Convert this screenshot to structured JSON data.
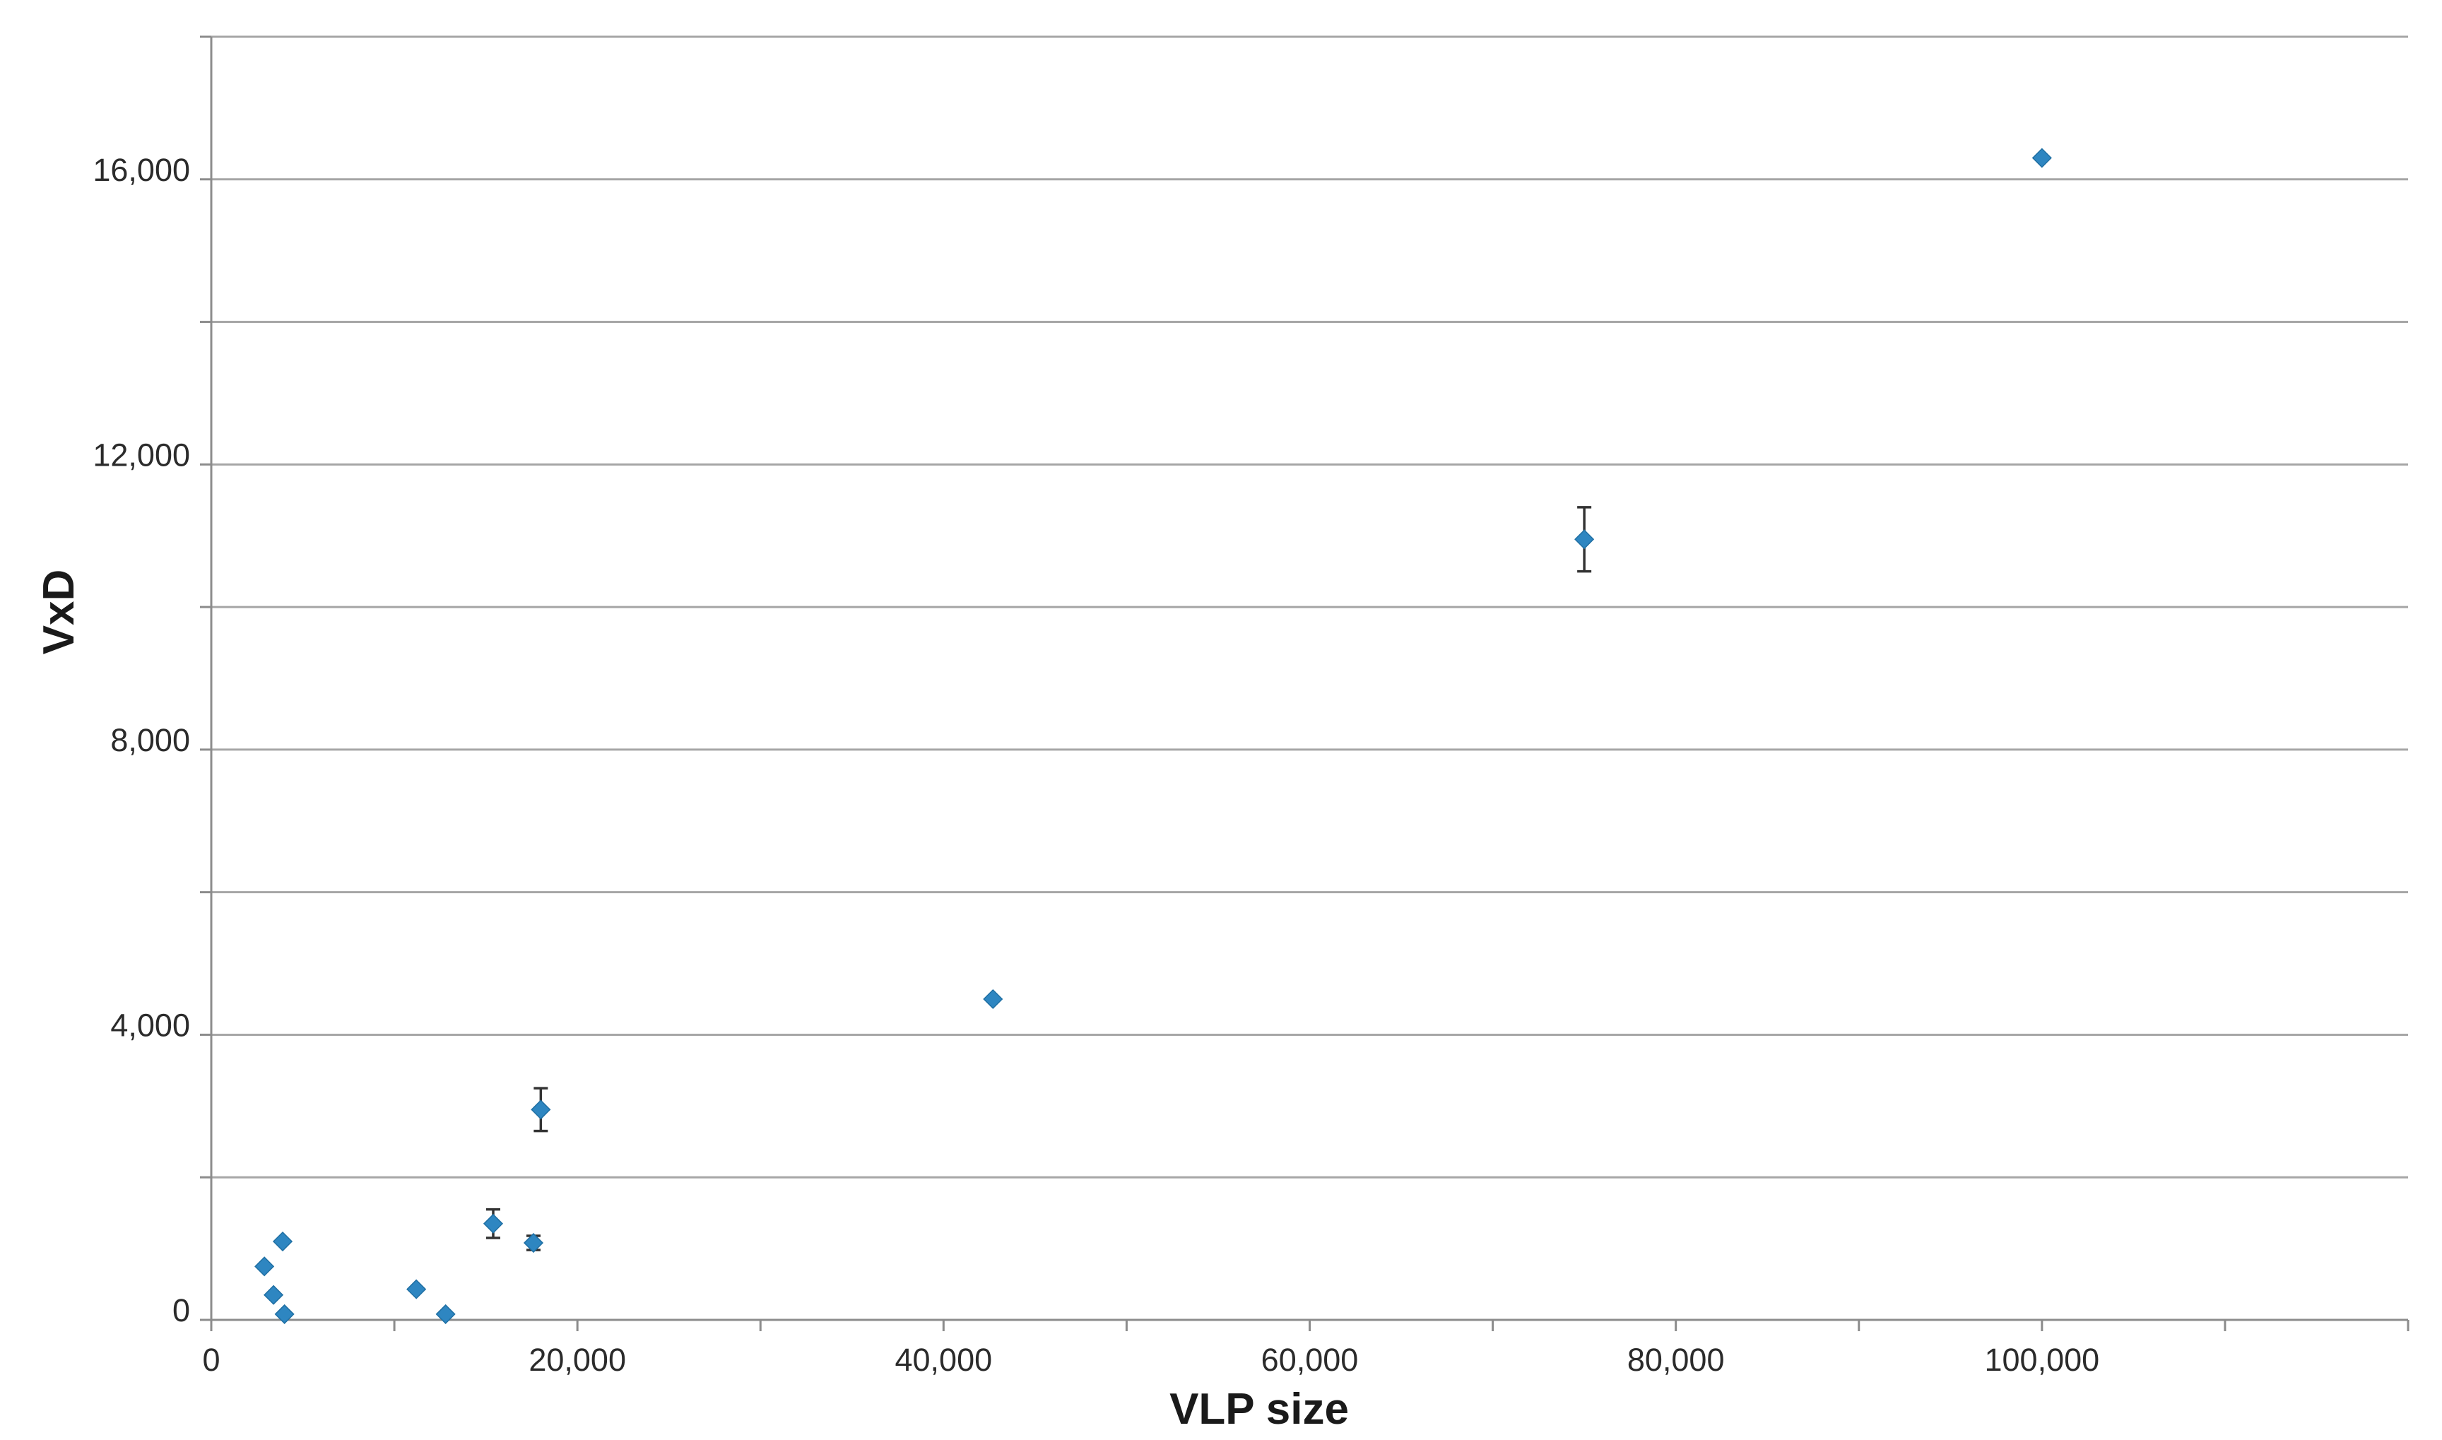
{
  "chart_data": {
    "type": "scatter",
    "title": "",
    "xlabel": "VLP size",
    "ylabel": "VxD",
    "xlim": [
      0,
      120000
    ],
    "ylim": [
      0,
      18000
    ],
    "x_ticks": [
      0,
      20000,
      40000,
      60000,
      80000,
      100000
    ],
    "x_tick_labels": [
      "0",
      "20,000",
      "40,000",
      "60,000",
      "80,000",
      "100,000"
    ],
    "y_gridlines": [
      2000,
      4000,
      6000,
      8000,
      10000,
      12000,
      14000,
      16000,
      18000
    ],
    "y_tick_values": [
      0,
      4000,
      8000,
      12000,
      16000
    ],
    "y_tick_labels": [
      "0",
      "4,000",
      "8,000",
      "12,000",
      "16,000"
    ],
    "grid": true,
    "legend": "none",
    "marker_color": "#2e86c1",
    "series": [
      {
        "points": [
          {
            "x": 2900,
            "y": 750,
            "err": 0
          },
          {
            "x": 3400,
            "y": 350,
            "err": 0
          },
          {
            "x": 3900,
            "y": 1100,
            "err": 0
          },
          {
            "x": 4000,
            "y": 80,
            "err": 0
          },
          {
            "x": 11200,
            "y": 430,
            "err": 0
          },
          {
            "x": 12800,
            "y": 80,
            "err": 0
          },
          {
            "x": 15400,
            "y": 1350,
            "err": 200
          },
          {
            "x": 17600,
            "y": 1080,
            "err": 100
          },
          {
            "x": 18000,
            "y": 2950,
            "err": 300
          },
          {
            "x": 42700,
            "y": 4500,
            "err": 0
          },
          {
            "x": 75000,
            "y": 10950,
            "err": 450
          },
          {
            "x": 100000,
            "y": 16300,
            "err": 0
          }
        ]
      }
    ]
  }
}
